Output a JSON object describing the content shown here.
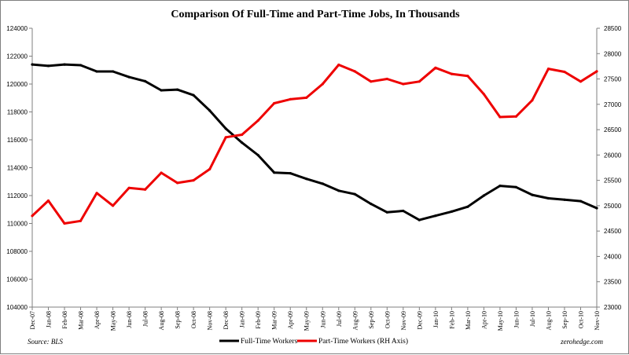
{
  "chart_data": {
    "type": "line",
    "title": "Comparison Of Full-Time and Part-Time Jobs, In Thousands",
    "source": "Source: BLS",
    "watermark": "zerohedge.com",
    "categories": [
      "Dec-07",
      "Jan-08",
      "Feb-08",
      "Mar-08",
      "Apr-08",
      "May-08",
      "Jun-08",
      "Jul-08",
      "Aug-08",
      "Sep-08",
      "Oct-08",
      "Nov-08",
      "Dec-08",
      "Jan-09",
      "Feb-09",
      "Mar-09",
      "Apr-09",
      "May-09",
      "Jun-09",
      "Jul-09",
      "Aug-09",
      "Sep-09",
      "Oct-09",
      "Nov-09",
      "Dec-09",
      "Jan-10",
      "Feb-10",
      "Mar-10",
      "Apr-10",
      "May-10",
      "Jun-10",
      "Jul-10",
      "Aug-10",
      "Sep-10",
      "Oct-10",
      "Nov-10"
    ],
    "y_left": {
      "min": 104000,
      "max": 124000,
      "ticks": [
        "104000",
        "106000",
        "108000",
        "110000",
        "112000",
        "114000",
        "116000",
        "118000",
        "120000",
        "122000",
        "124000"
      ]
    },
    "y_right": {
      "min": 23000,
      "max": 28500,
      "ticks": [
        "23000",
        "23500",
        "24000",
        "24500",
        "25000",
        "25500",
        "26000",
        "26500",
        "27000",
        "27500",
        "28000",
        "28500"
      ]
    },
    "legend_position": "bottom",
    "grid": false,
    "series": [
      {
        "name": "Full-Time Workers",
        "axis": "left",
        "color": "#000000",
        "values": [
          121400,
          121300,
          121400,
          121350,
          120900,
          120900,
          120500,
          120200,
          119550,
          119600,
          119200,
          118100,
          116800,
          115800,
          114900,
          113650,
          113600,
          113200,
          112850,
          112350,
          112100,
          111400,
          110800,
          110900,
          110250,
          110550,
          110850,
          111200,
          112000,
          112700,
          112600,
          112050,
          111800,
          111700,
          111600,
          111100
        ]
      },
      {
        "name": "Part-Time Workers (RH Axis)",
        "axis": "right",
        "color": "#ee0000",
        "values": [
          24800,
          25100,
          24650,
          24700,
          25250,
          25000,
          25350,
          25320,
          25650,
          25450,
          25500,
          25720,
          26350,
          26400,
          26680,
          27020,
          27100,
          27130,
          27400,
          27780,
          27650,
          27450,
          27500,
          27400,
          27450,
          27720,
          27600,
          27560,
          27200,
          26750,
          26760,
          27080,
          27700,
          27640,
          27450,
          27650
        ]
      }
    ]
  }
}
